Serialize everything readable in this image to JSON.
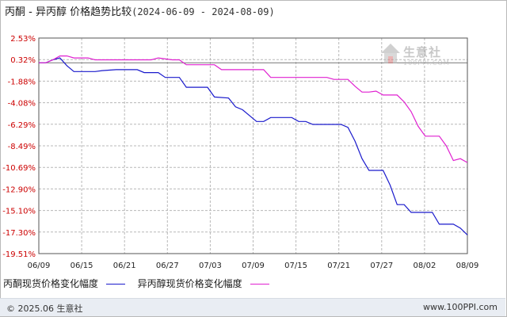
{
  "title": {
    "main": "丙酮 - 异丙醇 价格趋势比较",
    "range": "(2024-06-09 - 2024-08-09)"
  },
  "footer": {
    "copyright": "© 2025.06 生意社",
    "site": "www.100PPI.com"
  },
  "watermark": {
    "brand": "生意社",
    "url": "100PPI.COM"
  },
  "colors": {
    "acetone": "#1a1acc",
    "isopropanol": "#e020d0",
    "grid": "#b8b8b8",
    "axis": "#555555",
    "zero_line": "#777777"
  },
  "chart_data": {
    "type": "line",
    "title": "丙酮 - 异丙醇 价格趋势比较(2024-06-09 - 2024-08-09)",
    "xlabel": "",
    "ylabel": "",
    "x_ticks": [
      "06/09",
      "06/15",
      "06/21",
      "06/27",
      "07/03",
      "07/09",
      "07/15",
      "07/21",
      "07/27",
      "08/02",
      "08/09"
    ],
    "y_ticks": [
      "2.53%",
      "0.32%",
      "-1.88%",
      "-4.08%",
      "-6.29%",
      "-8.49%",
      "-10.69%",
      "-12.90%",
      "-15.10%",
      "-17.30%",
      "-19.51%"
    ],
    "ylim": [
      -19.51,
      2.53
    ],
    "xlim": [
      "2024-06-09",
      "2024-08-09"
    ],
    "grid": true,
    "legend_position": "bottom-left",
    "series": [
      {
        "name": "丙酮现货价格变化幅度",
        "color": "#1a1acc",
        "points": [
          [
            "2024-06-09",
            0.0
          ],
          [
            "2024-06-10",
            0.0
          ],
          [
            "2024-06-11",
            0.3
          ],
          [
            "2024-06-12",
            0.5
          ],
          [
            "2024-06-13",
            -0.3
          ],
          [
            "2024-06-14",
            -0.9
          ],
          [
            "2024-06-17",
            -0.9
          ],
          [
            "2024-06-18",
            -0.8
          ],
          [
            "2024-06-20",
            -0.7
          ],
          [
            "2024-06-23",
            -0.7
          ],
          [
            "2024-06-24",
            -1.0
          ],
          [
            "2024-06-26",
            -1.0
          ],
          [
            "2024-06-27",
            -1.5
          ],
          [
            "2024-06-29",
            -1.5
          ],
          [
            "2024-06-30",
            -2.5
          ],
          [
            "2024-07-03",
            -2.5
          ],
          [
            "2024-07-04",
            -3.5
          ],
          [
            "2024-07-06",
            -3.6
          ],
          [
            "2024-07-07",
            -4.5
          ],
          [
            "2024-07-08",
            -4.8
          ],
          [
            "2024-07-10",
            -6.0
          ],
          [
            "2024-07-11",
            -6.0
          ],
          [
            "2024-07-12",
            -5.6
          ],
          [
            "2024-07-15",
            -5.6
          ],
          [
            "2024-07-16",
            -6.0
          ],
          [
            "2024-07-17",
            -6.0
          ],
          [
            "2024-07-18",
            -6.3
          ],
          [
            "2024-07-22",
            -6.3
          ],
          [
            "2024-07-23",
            -6.6
          ],
          [
            "2024-07-24",
            -8.0
          ],
          [
            "2024-07-25",
            -9.8
          ],
          [
            "2024-07-26",
            -11.0
          ],
          [
            "2024-07-28",
            -11.0
          ],
          [
            "2024-07-29",
            -12.5
          ],
          [
            "2024-07-30",
            -14.5
          ],
          [
            "2024-07-31",
            -14.5
          ],
          [
            "2024-08-01",
            -15.3
          ],
          [
            "2024-08-04",
            -15.3
          ],
          [
            "2024-08-05",
            -16.5
          ],
          [
            "2024-08-07",
            -16.5
          ],
          [
            "2024-08-08",
            -16.9
          ],
          [
            "2024-08-09",
            -17.6
          ]
        ]
      },
      {
        "name": "异丙醇现货价格变化幅度",
        "color": "#e020d0",
        "points": [
          [
            "2024-06-09",
            0.0
          ],
          [
            "2024-06-10",
            0.0
          ],
          [
            "2024-06-11",
            0.3
          ],
          [
            "2024-06-12",
            0.7
          ],
          [
            "2024-06-13",
            0.7
          ],
          [
            "2024-06-14",
            0.5
          ],
          [
            "2024-06-16",
            0.5
          ],
          [
            "2024-06-17",
            0.3
          ],
          [
            "2024-06-25",
            0.3
          ],
          [
            "2024-06-26",
            0.5
          ],
          [
            "2024-06-28",
            0.3
          ],
          [
            "2024-06-29",
            0.3
          ],
          [
            "2024-06-30",
            -0.2
          ],
          [
            "2024-07-04",
            -0.2
          ],
          [
            "2024-07-05",
            -0.7
          ],
          [
            "2024-07-11",
            -0.7
          ],
          [
            "2024-07-12",
            -1.5
          ],
          [
            "2024-07-20",
            -1.5
          ],
          [
            "2024-07-21",
            -1.7
          ],
          [
            "2024-07-23",
            -1.7
          ],
          [
            "2024-07-24",
            -2.4
          ],
          [
            "2024-07-25",
            -3.0
          ],
          [
            "2024-07-26",
            -3.0
          ],
          [
            "2024-07-27",
            -2.9
          ],
          [
            "2024-07-28",
            -3.3
          ],
          [
            "2024-07-30",
            -3.3
          ],
          [
            "2024-07-31",
            -4.0
          ],
          [
            "2024-08-01",
            -5.0
          ],
          [
            "2024-08-02",
            -6.5
          ],
          [
            "2024-08-03",
            -7.5
          ],
          [
            "2024-08-05",
            -7.5
          ],
          [
            "2024-08-06",
            -8.5
          ],
          [
            "2024-08-07",
            -10.0
          ],
          [
            "2024-08-08",
            -9.8
          ],
          [
            "2024-08-09",
            -10.2
          ]
        ]
      }
    ]
  }
}
